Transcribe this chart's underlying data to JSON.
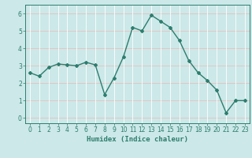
{
  "x": [
    0,
    1,
    2,
    3,
    4,
    5,
    6,
    7,
    8,
    9,
    10,
    11,
    12,
    13,
    14,
    15,
    16,
    17,
    18,
    19,
    20,
    21,
    22,
    23
  ],
  "y": [
    2.6,
    2.4,
    2.9,
    3.1,
    3.05,
    3.0,
    3.2,
    3.05,
    1.35,
    2.3,
    3.5,
    5.2,
    5.0,
    5.9,
    5.55,
    5.2,
    4.45,
    3.3,
    2.6,
    2.15,
    1.6,
    0.3,
    1.0,
    1.0
  ],
  "line_color": "#2d7d6e",
  "marker": "D",
  "marker_size": 2.0,
  "bg_color": "#cce8e8",
  "grid_color": "#ffffff",
  "grid_color_h": "#e8c0c0",
  "xlabel": "Humidex (Indice chaleur)",
  "xlim": [
    -0.5,
    23.5
  ],
  "ylim": [
    -0.3,
    6.5
  ],
  "xticks": [
    0,
    1,
    2,
    3,
    4,
    5,
    6,
    7,
    8,
    9,
    10,
    11,
    12,
    13,
    14,
    15,
    16,
    17,
    18,
    19,
    20,
    21,
    22,
    23
  ],
  "yticks": [
    0,
    1,
    2,
    3,
    4,
    5,
    6
  ],
  "label_fontsize": 6.5,
  "tick_fontsize": 5.5
}
